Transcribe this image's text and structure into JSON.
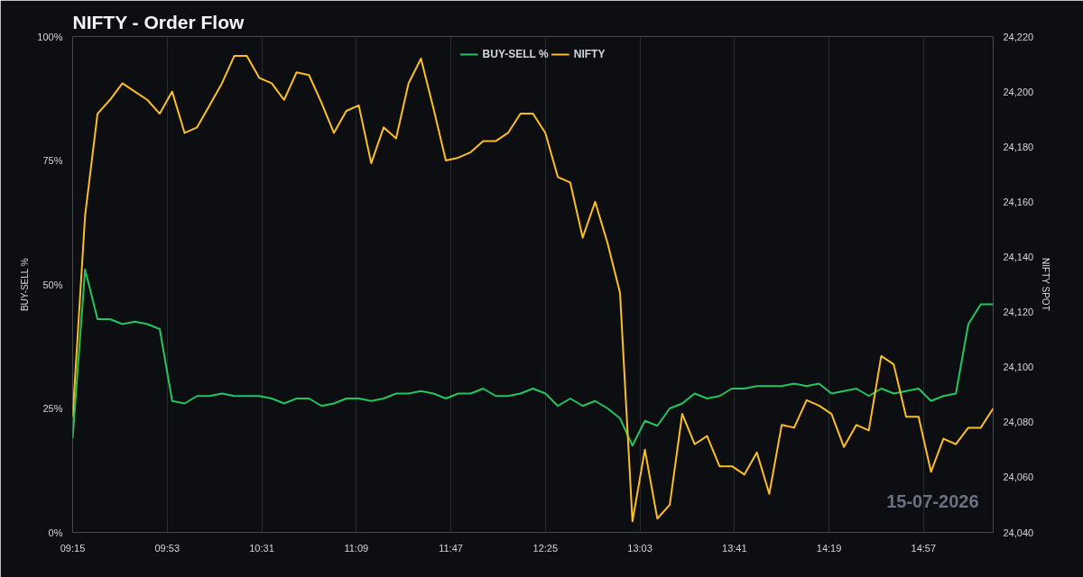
{
  "chart_data": {
    "type": "line",
    "title": "NIFTY - Order Flow",
    "ylabel": "BUY-SELL %",
    "y2label": "NIFTY SPOT",
    "x": [
      "2026-07-15T09:15",
      "2026-07-15T09:20",
      "2026-07-15T09:25",
      "2026-07-15T09:30",
      "2026-07-15T09:35",
      "2026-07-15T09:40",
      "2026-07-15T09:45",
      "2026-07-15T09:50",
      "2026-07-15T09:55",
      "2026-07-15T10:00",
      "2026-07-15T10:05",
      "2026-07-15T10:10",
      "2026-07-15T10:15",
      "2026-07-15T10:20",
      "2026-07-15T10:25",
      "2026-07-15T10:30",
      "2026-07-15T10:35",
      "2026-07-15T10:40",
      "2026-07-15T10:45",
      "2026-07-15T10:50",
      "2026-07-15T10:55",
      "2026-07-15T11:00",
      "2026-07-15T11:05",
      "2026-07-15T11:10",
      "2026-07-15T11:15",
      "2026-07-15T11:20",
      "2026-07-15T11:25",
      "2026-07-15T11:30",
      "2026-07-15T11:35",
      "2026-07-15T11:40",
      "2026-07-15T11:45",
      "2026-07-15T11:50",
      "2026-07-15T11:55",
      "2026-07-15T12:00",
      "2026-07-15T12:05",
      "2026-07-15T12:10",
      "2026-07-15T12:15",
      "2026-07-15T12:20",
      "2026-07-15T12:25",
      "2026-07-15T12:30",
      "2026-07-15T12:35",
      "2026-07-15T12:40",
      "2026-07-15T12:45",
      "2026-07-15T12:50",
      "2026-07-15T12:55",
      "2026-07-15T13:00",
      "2026-07-15T13:05",
      "2026-07-15T13:10",
      "2026-07-15T13:15",
      "2026-07-15T13:20",
      "2026-07-15T13:25",
      "2026-07-15T13:30",
      "2026-07-15T13:35",
      "2026-07-15T13:40",
      "2026-07-15T13:45",
      "2026-07-15T13:50",
      "2026-07-15T13:55",
      "2026-07-15T14:00",
      "2026-07-15T14:05",
      "2026-07-15T14:10",
      "2026-07-15T14:15",
      "2026-07-15T14:20",
      "2026-07-15T14:25",
      "2026-07-15T14:30",
      "2026-07-15T14:35",
      "2026-07-15T14:40",
      "2026-07-15T14:45",
      "2026-07-15T14:50",
      "2026-07-15T14:55",
      "2026-07-15T15:00",
      "2026-07-15T15:05",
      "2026-07-15T15:10",
      "2026-07-15T15:15",
      "2026-07-15T15:20",
      "2026-07-15T15:25"
    ],
    "series": [
      {
        "name": "BUY-SELL %",
        "color": "#22c55e",
        "values": [
          19,
          53,
          43,
          43,
          42,
          42.5,
          42,
          41,
          26.5,
          26,
          27.5,
          27.5,
          28,
          27.5,
          27.5,
          27.5,
          27,
          26,
          27,
          27,
          25.5,
          26,
          27,
          27,
          26.5,
          27,
          28,
          28,
          28.5,
          28,
          27,
          28,
          28,
          29,
          27.5,
          27.5,
          28,
          29,
          28,
          25.5,
          27,
          25.5,
          26.5,
          25,
          23,
          17.5,
          22.5,
          21.5,
          25,
          26,
          28,
          27,
          27.5,
          29,
          29,
          29.5,
          29.5,
          29.5,
          30,
          29.5,
          30,
          28,
          28.5,
          29,
          27.5,
          29,
          28,
          28.5,
          29,
          26.5,
          27.5,
          28,
          42,
          46,
          46
        ]
      },
      {
        "name": "NIFTY",
        "color": "#fbbf24",
        "axis": "y2",
        "values": [
          24082,
          24155,
          24192,
          24197,
          24203,
          24200,
          24197,
          24192,
          24200,
          24185,
          24187,
          24195,
          24203,
          24213,
          24213,
          24205,
          24203,
          24197,
          24207,
          24206,
          24196,
          24185,
          24193,
          24195,
          24174,
          24187,
          24183,
          24203,
          24212,
          24194,
          24175,
          24176,
          24178,
          24182,
          24182,
          24185,
          24192,
          24192,
          24185,
          24169,
          24167,
          24147,
          24160,
          24145,
          24127,
          24044,
          24070,
          24045,
          24050,
          24083,
          24072,
          24075,
          24064,
          24064,
          24061,
          24069,
          24054,
          24079,
          24078,
          24088,
          24086,
          24083,
          24071,
          24079,
          24077,
          24104,
          24101,
          24082,
          24082,
          24062,
          24074,
          24072,
          24078,
          24078,
          24085
        ]
      }
    ],
    "xlim": [
      "2026-07-15T09:15",
      "2026-07-15T15:25"
    ],
    "xticks": [
      {
        "value": "2026-07-15T09:15",
        "label": "09:15"
      },
      {
        "value": "2026-07-15T09:53",
        "label": "09:53"
      },
      {
        "value": "2026-07-15T10:31",
        "label": "10:31"
      },
      {
        "value": "2026-07-15T11:09",
        "label": "11:09"
      },
      {
        "value": "2026-07-15T11:47",
        "label": "11:47"
      },
      {
        "value": "2026-07-15T12:25",
        "label": "12:25"
      },
      {
        "value": "2026-07-15T13:03",
        "label": "13:03"
      },
      {
        "value": "2026-07-15T13:41",
        "label": "13:41"
      },
      {
        "value": "2026-07-15T14:19",
        "label": "14:19"
      },
      {
        "value": "2026-07-15T14:57",
        "label": "14:57"
      }
    ],
    "ylim": [
      0,
      100
    ],
    "yticks": [
      {
        "value": 0,
        "label": "0%"
      },
      {
        "value": 25,
        "label": "25%"
      },
      {
        "value": 50,
        "label": "50%"
      },
      {
        "value": 75,
        "label": "75%"
      },
      {
        "value": 100,
        "label": "100%"
      }
    ],
    "y2lim": [
      24040,
      24220
    ],
    "y2ticks": [
      {
        "value": 24040,
        "label": "24,040"
      },
      {
        "value": 24060,
        "label": "24,060"
      },
      {
        "value": 24080,
        "label": "24,080"
      },
      {
        "value": 24100,
        "label": "24,100"
      },
      {
        "value": 24120,
        "label": "24,120"
      },
      {
        "value": 24140,
        "label": "24,140"
      },
      {
        "value": 24160,
        "label": "24,160"
      },
      {
        "value": 24180,
        "label": "24,180"
      },
      {
        "value": 24200,
        "label": "24,200"
      },
      {
        "value": 24220,
        "label": "24,220"
      }
    ],
    "grid": "x",
    "legend": "top",
    "marker": "none",
    "line_style": "solid",
    "annotations": [
      "15-07-2026"
    ]
  }
}
